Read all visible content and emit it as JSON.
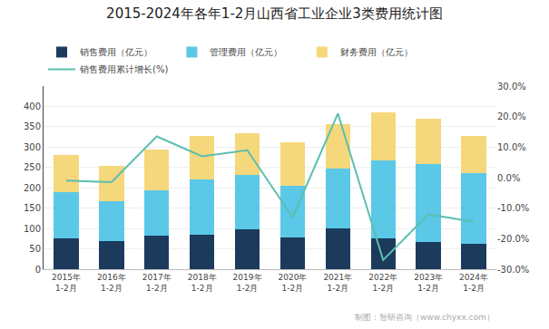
{
  "chart_data": {
    "type": "bar",
    "stacked": true,
    "title": "2015-2024年各年1-2月山西省工业企业3类费用统计图",
    "categories": [
      "2015年\n1-2月",
      "2016年\n1-2月",
      "2017年\n1-2月",
      "2018年\n1-2月",
      "2019年\n1-2月",
      "2020年\n1-2月",
      "2021年\n1-2月",
      "2022年\n1-2月",
      "2023年\n1-2月",
      "2024年\n1-2月"
    ],
    "series": [
      {
        "name": "销售费用（亿元）",
        "color": "#1b3a5c",
        "values": [
          75,
          70,
          82,
          85,
          97,
          78,
          100,
          75,
          67,
          62
        ]
      },
      {
        "name": "管理费用（亿元）",
        "color": "#5bc8e8",
        "values": [
          115,
          98,
          112,
          135,
          135,
          128,
          148,
          192,
          192,
          175
        ]
      },
      {
        "name": "财务费用（亿元）",
        "color": "#f5d87c",
        "values": [
          90,
          85,
          100,
          107,
          103,
          105,
          108,
          118,
          110,
          90
        ]
      },
      {
        "name": "销售费用累计增长(%)",
        "type": "line",
        "axis": "y2",
        "color": "#5bbfaf",
        "values": [
          -1.0,
          -1.5,
          13.5,
          7.0,
          9.0,
          -13.0,
          21.0,
          -27.0,
          -12.0,
          -14.5
        ]
      }
    ],
    "ylim": [
      0,
      450
    ],
    "yticks": [
      0,
      50,
      100,
      150,
      200,
      250,
      300,
      350,
      400
    ],
    "y2lim": [
      -30.0,
      30.0
    ],
    "y2ticks": [
      {
        "value": -30.0,
        "label": "-30.0%"
      },
      {
        "value": -20.0,
        "label": "-20.0%"
      },
      {
        "value": -10.0,
        "label": "-10.0%"
      },
      {
        "value": 0.0,
        "label": "0.0%"
      },
      {
        "value": 10.0,
        "label": "10.0%"
      },
      {
        "value": 20.0,
        "label": "20.0%"
      },
      {
        "value": 30.0,
        "label": "30.0%"
      }
    ],
    "grid": true,
    "legend": "upper left",
    "annotations": [
      "制图：智研咨询（www.chyxx.com）"
    ]
  }
}
